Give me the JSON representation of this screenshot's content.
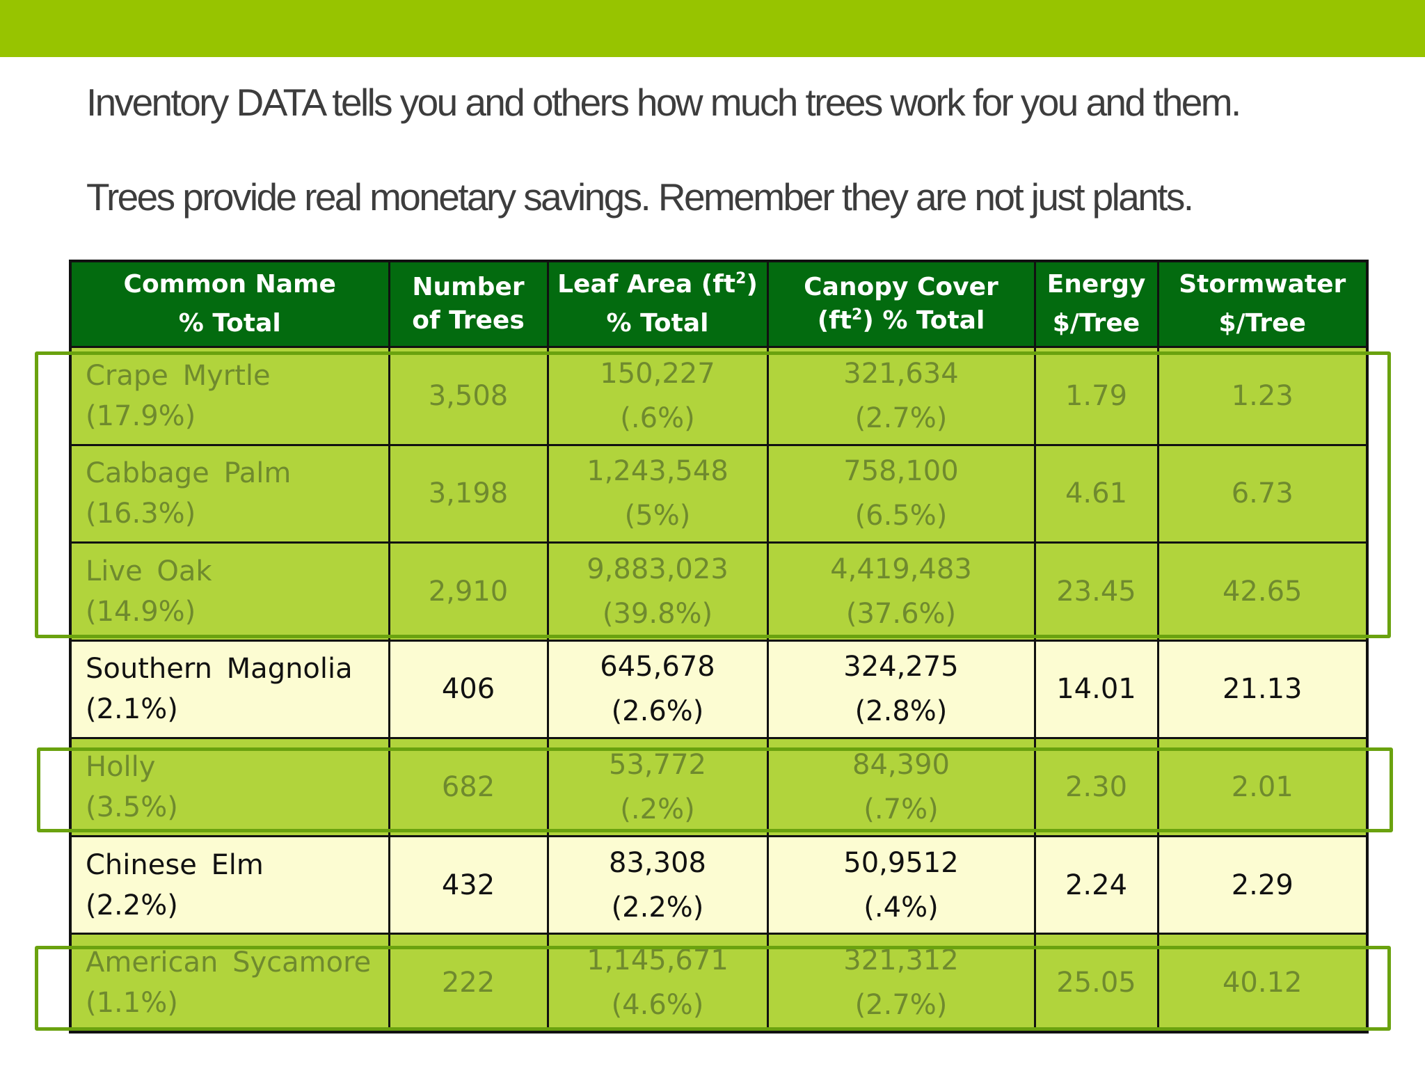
{
  "slide": {
    "line1": "Inventory DATA tells you and others how much trees work for you and them.",
    "line2": "Trees provide real monetary savings.  Remember they are not just plants."
  },
  "table": {
    "headers": {
      "name_1": "Common Name",
      "name_2": "% Total",
      "number_1": "Number",
      "number_2": "of Trees",
      "leaf_1": "Leaf Area (ft",
      "leaf_sup": "2",
      "leaf_1_end": ")",
      "leaf_2": "% Total",
      "canopy_1": "Canopy Cover",
      "canopy_2a": "(ft",
      "canopy_sup": "2",
      "canopy_2b": ") % Total",
      "energy_1": "Energy",
      "energy_2": "$/Tree",
      "storm_1": "Stormwater",
      "storm_2": "$/Tree"
    },
    "rows": [
      {
        "name": "Crape Myrtle",
        "name_pct": "(17.9%)",
        "number": "3,508",
        "leaf": "150,227",
        "leaf_pct": "(.6%)",
        "canopy": "321,634",
        "canopy_pct": "(2.7%)",
        "energy": "1.79",
        "storm": "1.23",
        "highlighted": true
      },
      {
        "name": "Cabbage Palm",
        "name_pct": "(16.3%)",
        "number": "3,198",
        "leaf": "1,243,548",
        "leaf_pct": "(5%)",
        "canopy": "758,100",
        "canopy_pct": "(6.5%)",
        "energy": "4.61",
        "storm": "6.73",
        "highlighted": true
      },
      {
        "name": "Live Oak",
        "name_pct": "(14.9%)",
        "number": "2,910",
        "leaf": "9,883,023",
        "leaf_pct": "(39.8%)",
        "canopy": "4,419,483",
        "canopy_pct": "(37.6%)",
        "energy": "23.45",
        "storm": "42.65",
        "highlighted": true
      },
      {
        "name": "Southern Magnolia",
        "name_pct": "(2.1%)",
        "number": "406",
        "leaf": "645,678",
        "leaf_pct": "(2.6%)",
        "canopy": "324,275",
        "canopy_pct": "(2.8%)",
        "energy": "14.01",
        "storm": "21.13",
        "highlighted": false
      },
      {
        "name": "Holly",
        "name_pct": "(3.5%)",
        "number": "682",
        "leaf": "53,772",
        "leaf_pct": "(.2%)",
        "canopy": "84,390",
        "canopy_pct": "(.7%)",
        "energy": "2.30",
        "storm": "2.01",
        "highlighted": true
      },
      {
        "name": "Chinese Elm",
        "name_pct": "(2.2%)",
        "number": "432",
        "leaf": "83,308",
        "leaf_pct": "(2.2%)",
        "canopy": "50,9512",
        "canopy_pct": "(.4%)",
        "energy": "2.24",
        "storm": "2.29",
        "highlighted": false
      },
      {
        "name": "American Sycamore",
        "name_pct": "(1.1%)",
        "number": "222",
        "leaf": "1,145,671",
        "leaf_pct": "(4.6%)",
        "canopy": "321,312",
        "canopy_pct": "(2.7%)",
        "energy": "25.05",
        "storm": "40.12",
        "highlighted": true
      }
    ]
  },
  "colors": {
    "top_bar": "#97c400",
    "header_bg": "#036b0f",
    "cell_bg": "#fcfcd2",
    "highlight_overlay": "#b1d43c",
    "highlight_border": "#6aa20f"
  }
}
